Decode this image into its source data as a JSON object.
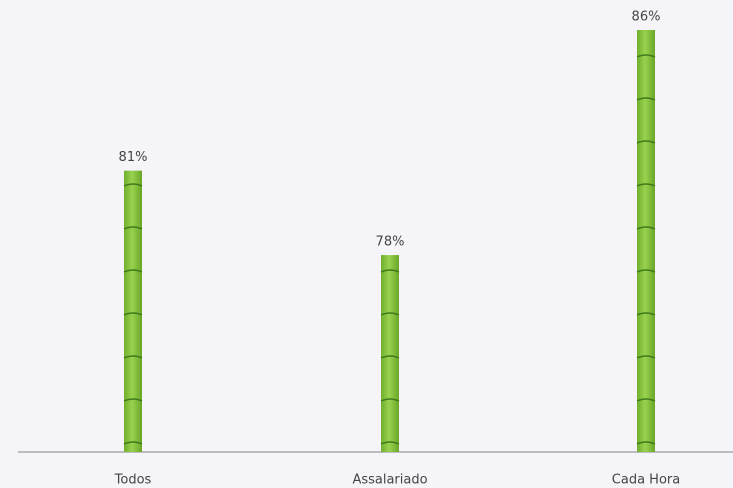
{
  "chart_data": {
    "type": "bar",
    "categories": [
      "Todos",
      "Assalariado",
      "Cada Hora"
    ],
    "values": [
      81,
      78,
      86
    ],
    "value_labels": [
      "81%",
      "78%",
      "86%"
    ],
    "color": "#8cc63f",
    "ylim": [
      71,
      86
    ]
  }
}
